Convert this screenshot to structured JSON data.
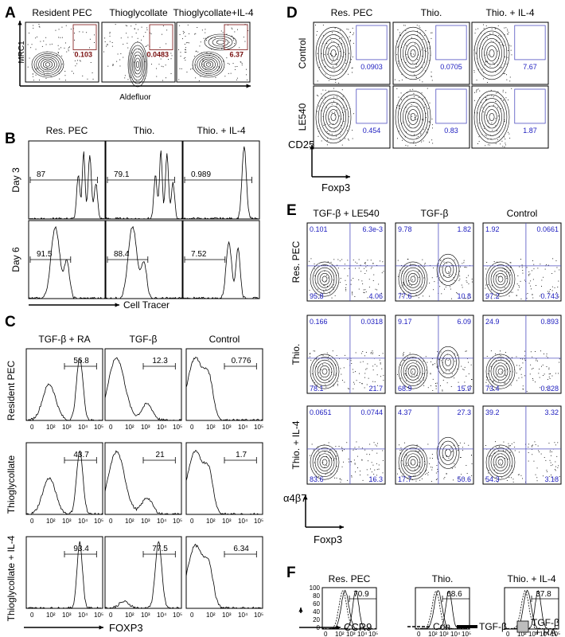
{
  "panel_letters": [
    "A",
    "B",
    "C",
    "D",
    "E",
    "F"
  ],
  "A": {
    "columns": [
      "Resident PEC",
      "Thioglycollate",
      "Thioglycollate+IL-4"
    ],
    "ylabel": "MRC1",
    "xlabel": "Aldefluor",
    "values": [
      "0.103",
      "0.0483",
      "6.37"
    ]
  },
  "B": {
    "columns": [
      "Res. PEC",
      "Thio.",
      "Thio. + IL-4"
    ],
    "rows": [
      "Day 3",
      "Day 6"
    ],
    "values": [
      [
        "87",
        "79.1",
        "0.989"
      ],
      [
        "91.5",
        "88.4",
        "7.52"
      ]
    ],
    "xlabel": "Cell Tracer"
  },
  "C": {
    "columns": [
      "TGF-β + RA",
      "TGF-β",
      "Control"
    ],
    "rows": [
      "Resident PEC",
      "Thioglycollate",
      "Thioglycollate + IL-4"
    ],
    "values": [
      [
        "56.8",
        "12.3",
        "0.776"
      ],
      [
        "43.7",
        "21",
        "1.7"
      ],
      [
        "93.4",
        "77.5",
        "6.34"
      ]
    ],
    "ticks": [
      "0",
      "10²",
      "10³",
      "10⁴",
      "10⁵"
    ],
    "xlabel": "FOXP3"
  },
  "D": {
    "columns": [
      "Res. PEC",
      "Thio.",
      "Thio. + IL-4"
    ],
    "rows": [
      "Control",
      "LE540"
    ],
    "values": [
      [
        "0.0903",
        "0.0705",
        "7.67"
      ],
      [
        "0.454",
        "0.83",
        "1.87"
      ]
    ],
    "ylabel": "CD25",
    "xlabel": "Foxp3"
  },
  "E": {
    "columns": [
      "TGF-β + LE540",
      "TGF-β",
      "Control"
    ],
    "rows": [
      "Res. PEC",
      "Thio.",
      "Thio. + IL-4"
    ],
    "quadrants": [
      [
        [
          "0.101",
          "6.3e-3",
          "95.8",
          "4.06"
        ],
        [
          "9.78",
          "1.82",
          "77.6",
          "10.8"
        ],
        [
          "1.92",
          "0.0661",
          "97.2",
          "0.743"
        ]
      ],
      [
        [
          "0.166",
          "0.0318",
          "78.1",
          "21.7"
        ],
        [
          "9.17",
          "6.09",
          "68.9",
          "15.9"
        ],
        [
          "24.9",
          "0.893",
          "73.4",
          "0.828"
        ]
      ],
      [
        [
          "0.0651",
          "0.0744",
          "83.6",
          "16.3"
        ],
        [
          "4.37",
          "27.3",
          "17.7",
          "50.6"
        ],
        [
          "39.2",
          "3.32",
          "54.3",
          "3.18"
        ]
      ]
    ],
    "ylabel": "α4β7",
    "xlabel": "Foxp3"
  },
  "F": {
    "columns": [
      "Res. PEC",
      "Thio.",
      "Thio. + IL-4"
    ],
    "values": [
      "70.9",
      "68.6",
      "37.8"
    ],
    "yticks": [
      "100",
      "80",
      "60",
      "40",
      "20",
      "0"
    ],
    "xticks": [
      "0",
      "10²",
      "10³",
      "10⁴",
      "10⁵"
    ],
    "xlabel": "CCR9",
    "legend": {
      "con": "Con",
      "tgf": "TGF-β",
      "tgfra_1": "TGF-β",
      "tgfra_2": "+ RA"
    }
  }
}
